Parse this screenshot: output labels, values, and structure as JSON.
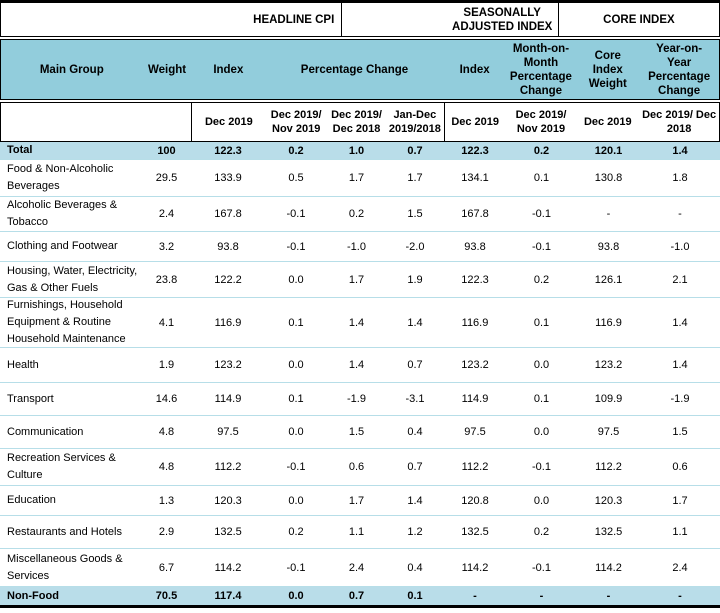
{
  "header_groups": {
    "headline": "HEADLINE CPI",
    "seasonal": "SEASONALLY ADJUSTED INDEX",
    "core": "CORE INDEX"
  },
  "columns": {
    "main_group": "Main Group",
    "weight": "Weight",
    "index": "Index",
    "pct_change": "Percentage Change",
    "sa_index": "Index",
    "sa_mom": "Month-on-Month Percentage Change",
    "core_weight": "Core Index Weight",
    "core_yoy": "Year-on-Year Percentage Change"
  },
  "periods": {
    "index": "Dec 2019",
    "mom": "Dec 2019/ Nov 2019",
    "yoy": "Dec 2019/ Dec 2018",
    "jan_dec": "Jan-Dec 2019/2018",
    "sa_index": "Dec 2019",
    "sa_mom": "Dec 2019/ Nov 2019",
    "core_index": "Dec 2019",
    "core_yoy": "Dec 2019/ Dec 2018"
  },
  "colors": {
    "header_blue": "#92CDDC",
    "highlight_blue": "#B9DDE9",
    "row_separator": "#B7DEE8"
  },
  "rows": [
    {
      "name": "Total",
      "highlight": true,
      "values": [
        "100",
        "122.3",
        "0.2",
        "1.0",
        "0.7",
        "122.3",
        "0.2",
        "120.1",
        "1.4"
      ]
    },
    {
      "name": "Food & Non-Alcoholic Beverages",
      "highlight": false,
      "values": [
        "29.5",
        "133.9",
        "0.5",
        "1.7",
        "1.7",
        "134.1",
        "0.1",
        "130.8",
        "1.8"
      ]
    },
    {
      "name": "Alcoholic Beverages & Tobacco",
      "highlight": false,
      "values": [
        "2.4",
        "167.8",
        "-0.1",
        "0.2",
        "1.5",
        "167.8",
        "-0.1",
        "-",
        "-"
      ]
    },
    {
      "name": "Clothing and Footwear",
      "highlight": false,
      "values": [
        "3.2",
        "93.8",
        "-0.1",
        "-1.0",
        "-2.0",
        "93.8",
        "-0.1",
        "93.8",
        "-1.0"
      ]
    },
    {
      "name": "Housing, Water, Electricity, Gas & Other Fuels",
      "highlight": false,
      "values": [
        "23.8",
        "122.2",
        "0.0",
        "1.7",
        "1.9",
        "122.3",
        "0.2",
        "126.1",
        "2.1"
      ]
    },
    {
      "name": "Furnishings, Household Equipment  & Routine Household Maintenance",
      "highlight": false,
      "values": [
        "4.1",
        "116.9",
        "0.1",
        "1.4",
        "1.4",
        "116.9",
        "0.1",
        "116.9",
        "1.4"
      ]
    },
    {
      "name": "Health",
      "highlight": false,
      "values": [
        "1.9",
        "123.2",
        "0.0",
        "1.4",
        "0.7",
        "123.2",
        "0.0",
        "123.2",
        "1.4"
      ]
    },
    {
      "name": "Transport",
      "highlight": false,
      "values": [
        "14.6",
        "114.9",
        "0.1",
        "-1.9",
        "-3.1",
        "114.9",
        "0.1",
        "109.9",
        "-1.9"
      ]
    },
    {
      "name": "Communication",
      "highlight": false,
      "values": [
        "4.8",
        "97.5",
        "0.0",
        "1.5",
        "0.4",
        "97.5",
        "0.0",
        "97.5",
        "1.5"
      ]
    },
    {
      "name": "Recreation Services & Culture",
      "highlight": false,
      "values": [
        "4.8",
        "112.2",
        "-0.1",
        "0.6",
        "0.7",
        "112.2",
        "-0.1",
        "112.2",
        "0.6"
      ]
    },
    {
      "name": "Education",
      "highlight": false,
      "values": [
        "1.3",
        "120.3",
        "0.0",
        "1.7",
        "1.4",
        "120.8",
        "0.0",
        "120.3",
        "1.7"
      ]
    },
    {
      "name": "Restaurants and Hotels",
      "highlight": false,
      "values": [
        "2.9",
        "132.5",
        "0.2",
        "1.1",
        "1.2",
        "132.5",
        "0.2",
        "132.5",
        "1.1"
      ]
    },
    {
      "name": "Miscellaneous Goods & Services",
      "highlight": false,
      "values": [
        "6.7",
        "114.2",
        "-0.1",
        "2.4",
        "0.4",
        "114.2",
        "-0.1",
        "114.2",
        "2.4"
      ]
    },
    {
      "name": "Non-Food",
      "highlight": true,
      "values": [
        "70.5",
        "117.4",
        "0.0",
        "0.7",
        "0.1",
        "-",
        "-",
        "-",
        "-"
      ]
    }
  ]
}
